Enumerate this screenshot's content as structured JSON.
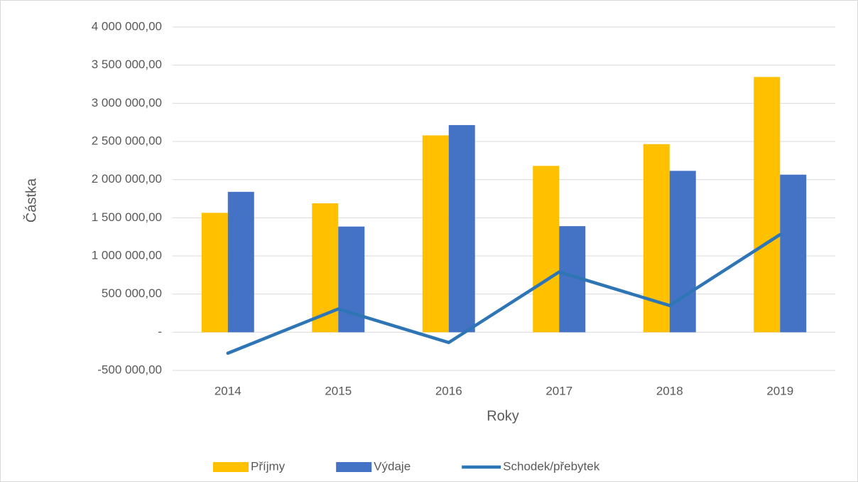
{
  "chart_data": {
    "type": "bar",
    "x_label": "Roky",
    "y_label": "Částka",
    "categories": [
      "2014",
      "2015",
      "2016",
      "2017",
      "2018",
      "2019"
    ],
    "series": [
      {
        "name": "Příjmy",
        "type": "bar",
        "color": "#FFC000",
        "values": [
          1565000,
          1690000,
          2580000,
          2180000,
          2465000,
          3345000
        ]
      },
      {
        "name": "Výdaje",
        "type": "bar",
        "color": "#4472C4",
        "values": [
          1840000,
          1385000,
          2715000,
          1390000,
          2115000,
          2065000
        ]
      },
      {
        "name": "Schodek/přebytek",
        "type": "line",
        "color": "#2E75B6",
        "values": [
          -275000,
          305000,
          -135000,
          790000,
          350000,
          1280000
        ]
      }
    ],
    "ylim": [
      -500000,
      4000000
    ],
    "yticks": [
      {
        "value": -500000,
        "label": "-500 000,00"
      },
      {
        "value": 0,
        "label": "-"
      },
      {
        "value": 500000,
        "label": "500 000,00"
      },
      {
        "value": 1000000,
        "label": "1 000 000,00"
      },
      {
        "value": 1500000,
        "label": "1 500 000,00"
      },
      {
        "value": 2000000,
        "label": "2 000 000,00"
      },
      {
        "value": 2500000,
        "label": "2 500 000,00"
      },
      {
        "value": 3000000,
        "label": "3 000 000,00"
      },
      {
        "value": 3500000,
        "label": "3 500 000,00"
      },
      {
        "value": 4000000,
        "label": "4 000 000,00"
      }
    ],
    "grid": true,
    "legend": "bottom"
  }
}
